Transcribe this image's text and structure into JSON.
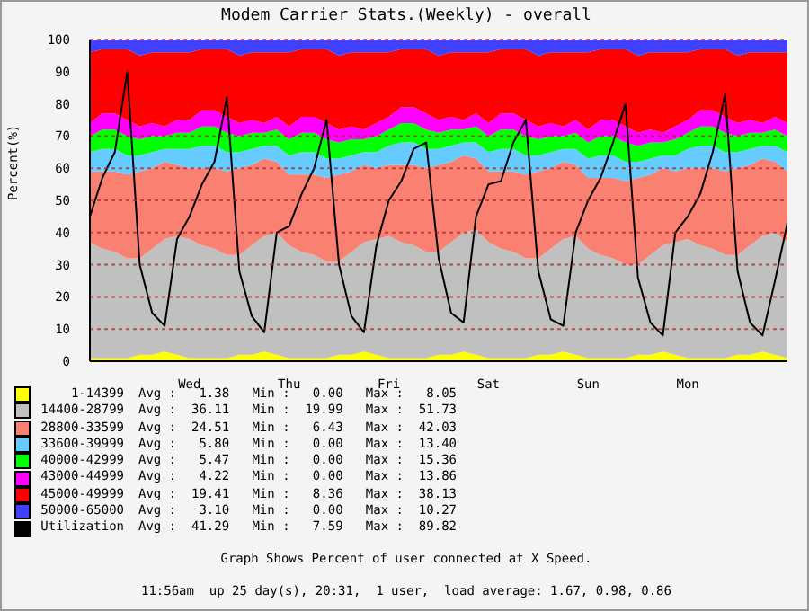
{
  "chart_data": {
    "type": "area",
    "stacked": true,
    "title": "Modem Carrier Stats.(Weekly) - overall",
    "ylabel": "Percent(%)",
    "categories": [
      null,
      null,
      null,
      null,
      null,
      null,
      null,
      null,
      "Wed",
      null,
      null,
      null,
      null,
      null,
      null,
      null,
      "Thu",
      null,
      null,
      null,
      null,
      null,
      null,
      null,
      "Fri",
      null,
      null,
      null,
      null,
      null,
      null,
      null,
      "Sat",
      null,
      null,
      null,
      null,
      null,
      null,
      null,
      "Sun",
      null,
      null,
      null,
      null,
      null,
      null,
      null,
      "Mon",
      null,
      null,
      null,
      null,
      null,
      null,
      null,
      null
    ],
    "ylim": [
      0,
      100
    ],
    "yticks": [
      0,
      10,
      20,
      30,
      40,
      50,
      60,
      70,
      80,
      90,
      100
    ],
    "grid": "y",
    "legend": "bottom",
    "series": [
      {
        "name": "1-14399",
        "color": "#ffff00",
        "values": [
          1,
          1,
          1,
          1,
          2,
          2,
          3,
          2,
          1,
          1,
          1,
          1,
          2,
          2,
          3,
          2,
          1,
          1,
          1,
          1,
          2,
          2,
          3,
          2,
          1,
          1,
          1,
          1,
          2,
          2,
          3,
          2,
          1,
          1,
          1,
          1,
          2,
          2,
          3,
          2,
          1,
          1,
          1,
          1,
          2,
          2,
          3,
          2,
          1,
          1,
          1,
          1,
          2,
          2,
          3,
          2,
          1
        ]
      },
      {
        "name": "14400-28799",
        "color": "#c0c0c0",
        "values": [
          36,
          34,
          33,
          31,
          30,
          33,
          35,
          37,
          37,
          35,
          34,
          32,
          31,
          34,
          36,
          38,
          35,
          33,
          32,
          30,
          29,
          32,
          34,
          36,
          38,
          36,
          35,
          33,
          32,
          35,
          37,
          39,
          36,
          34,
          33,
          31,
          30,
          33,
          35,
          37,
          34,
          32,
          31,
          29,
          28,
          31,
          33,
          35,
          37,
          35,
          34,
          32,
          31,
          34,
          36,
          38,
          36
        ]
      },
      {
        "name": "28800-33599",
        "color": "#fa8072",
        "values": [
          22,
          24,
          25,
          26,
          27,
          25,
          24,
          22,
          22,
          24,
          25,
          26,
          27,
          25,
          24,
          22,
          22,
          24,
          25,
          26,
          27,
          25,
          24,
          22,
          22,
          24,
          25,
          26,
          27,
          25,
          24,
          22,
          22,
          24,
          25,
          26,
          27,
          25,
          24,
          22,
          22,
          24,
          25,
          26,
          27,
          25,
          24,
          22,
          22,
          24,
          25,
          26,
          27,
          25,
          24,
          22,
          22
        ]
      },
      {
        "name": "33600-39999",
        "color": "#66ccff",
        "values": [
          6,
          7,
          7,
          6,
          5,
          5,
          4,
          5,
          6,
          7,
          7,
          6,
          5,
          5,
          4,
          5,
          6,
          7,
          7,
          6,
          5,
          5,
          4,
          5,
          6,
          7,
          7,
          6,
          5,
          5,
          4,
          5,
          6,
          7,
          7,
          6,
          5,
          5,
          4,
          5,
          6,
          7,
          7,
          6,
          5,
          5,
          4,
          5,
          6,
          7,
          7,
          6,
          5,
          5,
          4,
          5,
          6
        ]
      },
      {
        "name": "40000-42999",
        "color": "#00ff00",
        "values": [
          5,
          6,
          6,
          6,
          5,
          5,
          4,
          5,
          5,
          6,
          6,
          6,
          5,
          5,
          4,
          5,
          5,
          6,
          6,
          6,
          5,
          5,
          4,
          5,
          5,
          6,
          6,
          6,
          5,
          5,
          4,
          5,
          5,
          6,
          6,
          6,
          5,
          5,
          4,
          5,
          5,
          6,
          6,
          6,
          5,
          5,
          4,
          5,
          5,
          6,
          6,
          6,
          5,
          5,
          4,
          5,
          5
        ]
      },
      {
        "name": "43000-44999",
        "color": "#ff00ff",
        "values": [
          4,
          5,
          5,
          5,
          4,
          4,
          3,
          4,
          4,
          5,
          5,
          5,
          4,
          4,
          3,
          4,
          4,
          5,
          5,
          5,
          4,
          4,
          3,
          4,
          4,
          5,
          5,
          5,
          4,
          4,
          3,
          4,
          4,
          5,
          5,
          5,
          4,
          4,
          3,
          4,
          4,
          5,
          5,
          5,
          4,
          4,
          3,
          4,
          4,
          5,
          5,
          5,
          4,
          4,
          3,
          4,
          4
        ]
      },
      {
        "name": "45000-49999",
        "color": "#ff0000",
        "values": [
          22,
          20,
          20,
          22,
          22,
          22,
          23,
          21,
          21,
          19,
          19,
          21,
          21,
          21,
          22,
          20,
          23,
          21,
          21,
          23,
          23,
          23,
          24,
          22,
          20,
          18,
          18,
          20,
          20,
          20,
          21,
          19,
          22,
          20,
          20,
          22,
          22,
          22,
          23,
          21,
          24,
          22,
          22,
          24,
          24,
          24,
          25,
          23,
          21,
          19,
          19,
          21,
          21,
          21,
          22,
          20,
          22
        ]
      },
      {
        "name": "50000-65000",
        "color": "#4040ff",
        "values": [
          4,
          3,
          3,
          3,
          5,
          4,
          4,
          4,
          4,
          3,
          3,
          3,
          5,
          4,
          4,
          4,
          4,
          3,
          3,
          3,
          5,
          4,
          4,
          4,
          4,
          3,
          3,
          3,
          5,
          4,
          4,
          4,
          4,
          3,
          3,
          3,
          5,
          4,
          4,
          4,
          4,
          3,
          3,
          3,
          5,
          4,
          4,
          4,
          4,
          3,
          3,
          3,
          5,
          4,
          4,
          4,
          4
        ]
      },
      {
        "name": "Utilization",
        "type": "line",
        "color": "#000000",
        "values": [
          45,
          57,
          65,
          90,
          30,
          15,
          11,
          38,
          45,
          55,
          62,
          82,
          28,
          14,
          9,
          40,
          42,
          52,
          60,
          75,
          30,
          14,
          9,
          36,
          50,
          56,
          66,
          68,
          32,
          15,
          12,
          45,
          55,
          56,
          68,
          75,
          28,
          13,
          11,
          40,
          50,
          57,
          68,
          80,
          26,
          12,
          8,
          40,
          45,
          52,
          65,
          83,
          28,
          12,
          8,
          25,
          43
        ]
      }
    ],
    "annotations": [
      "Avg :   1.38   Min :   0.00   Max :   8.05",
      "Avg :  36.11   Min :  19.99   Max :  51.73",
      "Avg :  24.51   Min :   6.43   Max :  42.03",
      "Avg :   5.80   Min :   0.00   Max :  13.40",
      "Avg :   5.47   Min :   0.00   Max :  15.36",
      "Avg :   4.22   Min :   0.00   Max :  13.86",
      "Avg :  19.41   Min :   8.36   Max :  38.13",
      "Avg :   3.10   Min :   0.00   Max :  10.27",
      "Avg :  41.29   Min :   7.59   Max :  89.82",
      "Graph Shows Percent of user connected at X Speed.",
      "11:56am  up 25 day(s), 20:31,  1 user,  load average: 1.67, 0.98, 0.86"
    ]
  }
}
